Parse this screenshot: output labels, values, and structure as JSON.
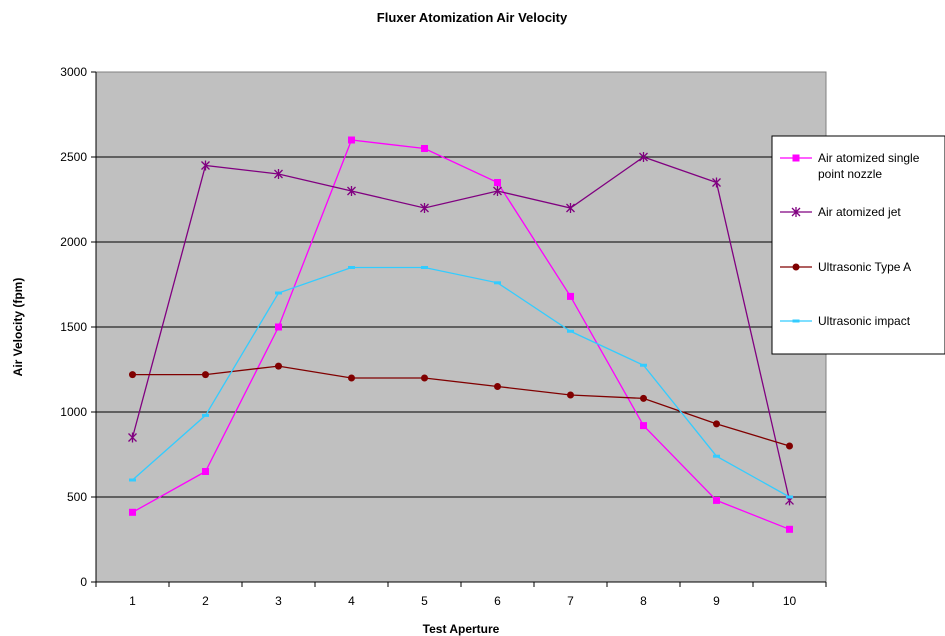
{
  "chart_data": {
    "type": "line",
    "title": "Fluxer Atomization Air Velocity",
    "xlabel": "Test Aperture",
    "ylabel": "Air Velocity (fpm)",
    "categories": [
      "1",
      "2",
      "3",
      "4",
      "5",
      "6",
      "7",
      "8",
      "9",
      "10"
    ],
    "ylim": [
      0,
      3000
    ],
    "yticks": [
      "0",
      "500",
      "1000",
      "1500",
      "2000",
      "2500",
      "3000"
    ],
    "grid": "horizontal major gridlines",
    "legend_position": "right",
    "plot_background": "#c0c0c0",
    "series": [
      {
        "name": "Air atomized single point nozzle",
        "color": "#ff00ff",
        "marker": "square",
        "values": [
          410,
          650,
          1500,
          2600,
          2550,
          2350,
          1680,
          920,
          480,
          310
        ]
      },
      {
        "name": "Air atomized jet",
        "color": "#800080",
        "marker": "star",
        "values": [
          850,
          2450,
          2400,
          2300,
          2200,
          2300,
          2200,
          2500,
          2350,
          480
        ]
      },
      {
        "name": "Ultrasonic Type A",
        "color": "#800000",
        "marker": "circle",
        "values": [
          1220,
          1220,
          1270,
          1200,
          1200,
          1150,
          1100,
          1080,
          930,
          800
        ]
      },
      {
        "name": "Ultrasonic impact",
        "color": "#33ccff",
        "marker": "dash",
        "values": [
          600,
          980,
          1700,
          1850,
          1850,
          1760,
          1475,
          1275,
          740,
          500
        ]
      }
    ]
  }
}
